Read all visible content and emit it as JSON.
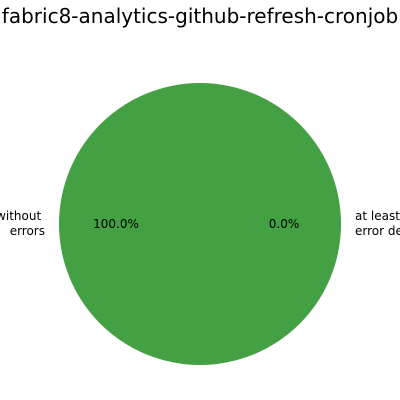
{
  "chart_data": {
    "type": "pie",
    "title": "fabric8-analytics-github-refresh-cronjob",
    "slices": [
      {
        "label_lines": [
          "without",
          "errors"
        ],
        "value": 100.0,
        "pct_label": "100.0%",
        "color": "#43a043"
      },
      {
        "label_lines": [
          "at least",
          "error de"
        ],
        "value": 0.0,
        "pct_label": "0.0%",
        "color": "#e03030"
      }
    ]
  }
}
